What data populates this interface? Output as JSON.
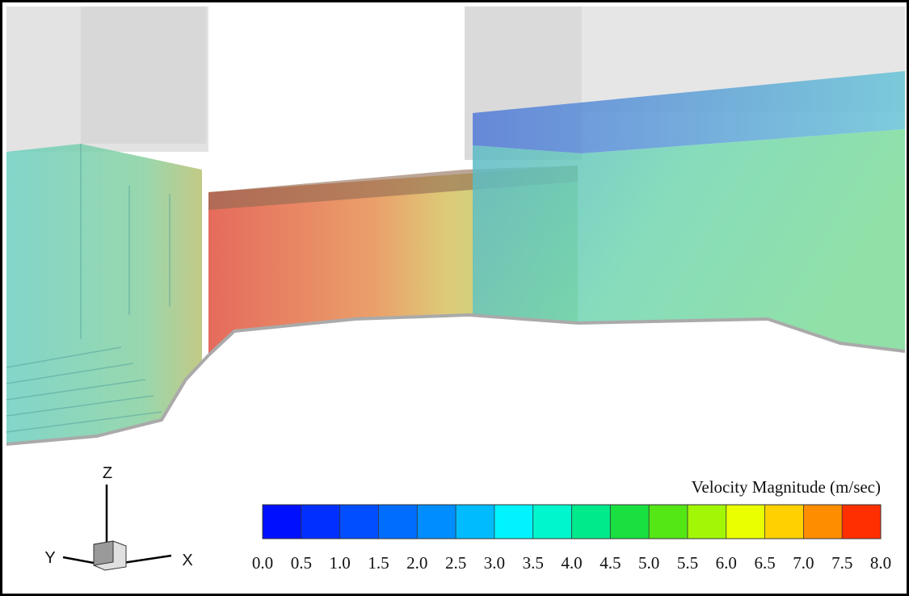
{
  "colorbar": {
    "title": "Velocity Magnitude (m/sec)",
    "lim": [
      0,
      8
    ],
    "ticks": [
      {
        "value": 0,
        "label": "0.0"
      },
      {
        "value": 0.5,
        "label": "0.5"
      },
      {
        "value": 1,
        "label": "1.0"
      },
      {
        "value": 1.5,
        "label": "1.5"
      },
      {
        "value": 2,
        "label": "2.0"
      },
      {
        "value": 2.5,
        "label": "2.5"
      },
      {
        "value": 3,
        "label": "3.0"
      },
      {
        "value": 3.5,
        "label": "3.5"
      },
      {
        "value": 4,
        "label": "4.0"
      },
      {
        "value": 4.5,
        "label": "4.5"
      },
      {
        "value": 5,
        "label": "5.0"
      },
      {
        "value": 5.5,
        "label": "5.5"
      },
      {
        "value": 6,
        "label": "6.0"
      },
      {
        "value": 6.5,
        "label": "6.5"
      },
      {
        "value": 7,
        "label": "7.0"
      },
      {
        "value": 7.5,
        "label": "7.5"
      },
      {
        "value": 8,
        "label": "8.0"
      }
    ]
  },
  "axes": {
    "z": "Z",
    "y": "Y",
    "x": "X"
  }
}
